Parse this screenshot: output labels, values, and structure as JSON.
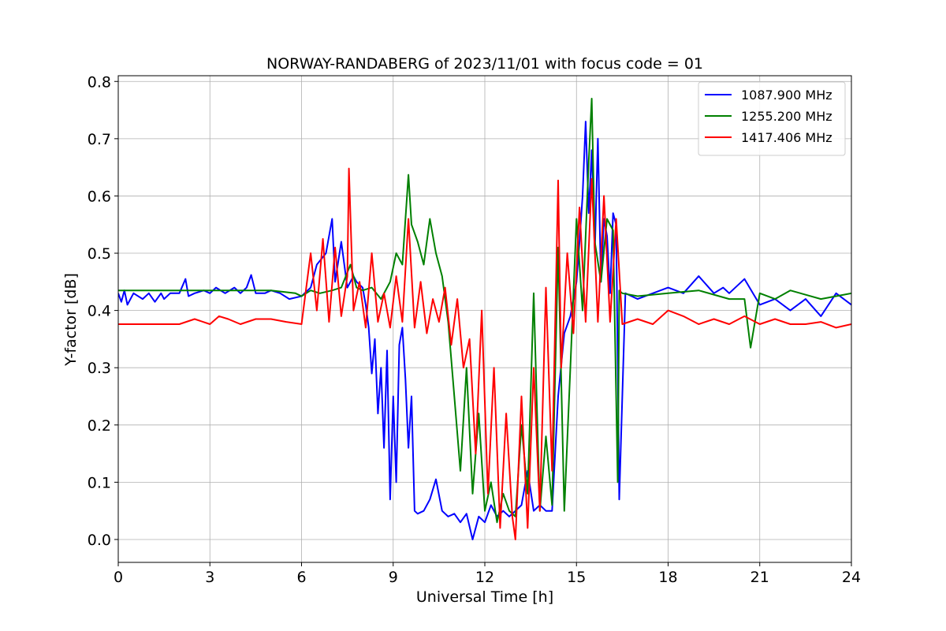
{
  "chart_data": {
    "type": "line",
    "title": "NORWAY-RANDABERG of 2023/11/01 with focus code = 01",
    "xlabel": "Universal Time [h]",
    "ylabel": "Y-factor [dB]",
    "xlim": [
      0,
      24
    ],
    "ylim": [
      -0.04,
      0.81
    ],
    "xticks": [
      0,
      3,
      6,
      9,
      12,
      15,
      18,
      21,
      24
    ],
    "xtick_labels": [
      "0",
      "3",
      "6",
      "9",
      "12",
      "15",
      "18",
      "21",
      "24"
    ],
    "yticks": [
      0.0,
      0.1,
      0.2,
      0.3,
      0.4,
      0.5,
      0.6,
      0.7,
      0.8
    ],
    "ytick_labels": [
      "0.0",
      "0.1",
      "0.2",
      "0.3",
      "0.4",
      "0.5",
      "0.6",
      "0.7",
      "0.8"
    ],
    "grid": true,
    "legend_position": "top-right",
    "series": [
      {
        "name": "1087.900 MHz",
        "color": "#0000ff",
        "x": [
          0,
          0.1,
          0.2,
          0.3,
          0.5,
          0.8,
          1.0,
          1.2,
          1.4,
          1.5,
          1.7,
          2.0,
          2.2,
          2.3,
          2.5,
          2.8,
          3.0,
          3.2,
          3.5,
          3.8,
          4.0,
          4.2,
          4.35,
          4.5,
          4.8,
          5.0,
          5.3,
          5.6,
          6.0,
          6.3,
          6.5,
          6.8,
          7.0,
          7.1,
          7.3,
          7.5,
          7.7,
          7.8,
          8.0,
          8.1,
          8.2,
          8.3,
          8.4,
          8.5,
          8.6,
          8.7,
          8.8,
          8.9,
          9.0,
          9.1,
          9.2,
          9.3,
          9.4,
          9.5,
          9.6,
          9.7,
          9.8,
          10.0,
          10.2,
          10.4,
          10.6,
          10.8,
          11.0,
          11.2,
          11.4,
          11.6,
          11.8,
          12.0,
          12.2,
          12.4,
          12.6,
          12.8,
          13.0,
          13.2,
          13.4,
          13.6,
          13.8,
          14.0,
          14.2,
          14.4,
          14.6,
          14.8,
          15.0,
          15.1,
          15.2,
          15.3,
          15.4,
          15.5,
          15.6,
          15.7,
          15.8,
          15.9,
          16.0,
          16.1,
          16.2,
          16.3,
          16.4,
          16.6,
          17.0,
          17.5,
          18.0,
          18.5,
          19.0,
          19.5,
          19.8,
          20.0,
          20.5,
          21.0,
          21.5,
          22.0,
          22.5,
          23.0,
          23.5,
          24.0
        ],
        "y": [
          0.43,
          0.415,
          0.435,
          0.41,
          0.43,
          0.42,
          0.43,
          0.415,
          0.43,
          0.42,
          0.43,
          0.43,
          0.455,
          0.425,
          0.43,
          0.435,
          0.43,
          0.44,
          0.43,
          0.44,
          0.43,
          0.44,
          0.462,
          0.43,
          0.43,
          0.435,
          0.43,
          0.42,
          0.425,
          0.44,
          0.48,
          0.5,
          0.56,
          0.45,
          0.52,
          0.44,
          0.46,
          0.45,
          0.44,
          0.41,
          0.37,
          0.29,
          0.35,
          0.22,
          0.3,
          0.16,
          0.33,
          0.07,
          0.25,
          0.1,
          0.34,
          0.37,
          0.28,
          0.16,
          0.25,
          0.05,
          0.045,
          0.05,
          0.07,
          0.105,
          0.05,
          0.04,
          0.045,
          0.03,
          0.045,
          0.0,
          0.04,
          0.03,
          0.06,
          0.04,
          0.05,
          0.04,
          0.05,
          0.06,
          0.12,
          0.05,
          0.06,
          0.05,
          0.05,
          0.25,
          0.36,
          0.39,
          0.45,
          0.52,
          0.6,
          0.73,
          0.57,
          0.68,
          0.5,
          0.7,
          0.45,
          0.56,
          0.53,
          0.43,
          0.57,
          0.55,
          0.07,
          0.43,
          0.42,
          0.43,
          0.44,
          0.43,
          0.46,
          0.43,
          0.44,
          0.43,
          0.455,
          0.41,
          0.42,
          0.4,
          0.42,
          0.39,
          0.43,
          0.41
        ]
      },
      {
        "name": "1255.200 MHz",
        "color": "#008000",
        "x": [
          0,
          1.0,
          2.0,
          3.0,
          4.0,
          5.0,
          5.8,
          6.0,
          6.3,
          6.6,
          7.0,
          7.3,
          7.6,
          7.8,
          8.0,
          8.3,
          8.6,
          8.9,
          9.1,
          9.3,
          9.5,
          9.6,
          9.8,
          10.0,
          10.2,
          10.4,
          10.6,
          10.8,
          11.0,
          11.2,
          11.4,
          11.6,
          11.8,
          12.0,
          12.2,
          12.4,
          12.6,
          12.8,
          13.0,
          13.2,
          13.4,
          13.6,
          13.8,
          14.0,
          14.2,
          14.4,
          14.6,
          14.8,
          15.0,
          15.2,
          15.4,
          15.5,
          15.6,
          15.8,
          16.0,
          16.2,
          16.35,
          16.4,
          16.5,
          17.0,
          18.0,
          19.0,
          20.0,
          20.5,
          20.7,
          21.0,
          21.5,
          22.0,
          23.0,
          24.0
        ],
        "y": [
          0.435,
          0.435,
          0.435,
          0.435,
          0.435,
          0.435,
          0.43,
          0.425,
          0.435,
          0.43,
          0.435,
          0.44,
          0.48,
          0.44,
          0.435,
          0.44,
          0.42,
          0.45,
          0.5,
          0.48,
          0.637,
          0.55,
          0.52,
          0.48,
          0.56,
          0.5,
          0.46,
          0.38,
          0.25,
          0.12,
          0.3,
          0.08,
          0.22,
          0.05,
          0.1,
          0.03,
          0.08,
          0.05,
          0.04,
          0.2,
          0.08,
          0.43,
          0.05,
          0.18,
          0.06,
          0.51,
          0.05,
          0.3,
          0.56,
          0.4,
          0.66,
          0.77,
          0.52,
          0.45,
          0.56,
          0.54,
          0.1,
          0.435,
          0.43,
          0.425,
          0.43,
          0.435,
          0.42,
          0.42,
          0.335,
          0.43,
          0.42,
          0.435,
          0.42,
          0.43
        ]
      },
      {
        "name": "1417.406 MHz",
        "color": "#ff0000",
        "x": [
          0,
          2.0,
          2.5,
          3.0,
          3.3,
          3.6,
          4.0,
          4.5,
          5.0,
          5.5,
          6.0,
          6.3,
          6.5,
          6.7,
          6.9,
          7.1,
          7.3,
          7.5,
          7.55,
          7.7,
          7.9,
          8.1,
          8.3,
          8.5,
          8.7,
          8.9,
          9.1,
          9.3,
          9.5,
          9.7,
          9.9,
          10.1,
          10.3,
          10.5,
          10.7,
          10.9,
          11.1,
          11.3,
          11.5,
          11.7,
          11.9,
          12.1,
          12.3,
          12.5,
          12.7,
          12.9,
          13.0,
          13.2,
          13.4,
          13.6,
          13.8,
          14.0,
          14.2,
          14.4,
          14.5,
          14.7,
          14.9,
          15.1,
          15.3,
          15.5,
          15.7,
          15.9,
          16.1,
          16.3,
          16.5,
          17.0,
          17.5,
          18.0,
          18.5,
          19.0,
          19.5,
          20.0,
          20.5,
          21.0,
          21.5,
          22.0,
          22.5,
          23.0,
          23.5,
          24.0
        ],
        "y": [
          0.376,
          0.376,
          0.385,
          0.376,
          0.39,
          0.385,
          0.376,
          0.385,
          0.385,
          0.38,
          0.376,
          0.5,
          0.4,
          0.525,
          0.38,
          0.51,
          0.39,
          0.46,
          0.648,
          0.4,
          0.45,
          0.37,
          0.5,
          0.38,
          0.43,
          0.37,
          0.46,
          0.38,
          0.56,
          0.37,
          0.45,
          0.36,
          0.42,
          0.38,
          0.44,
          0.34,
          0.42,
          0.3,
          0.35,
          0.15,
          0.4,
          0.08,
          0.3,
          0.02,
          0.22,
          0.04,
          0.0,
          0.25,
          0.02,
          0.3,
          0.05,
          0.44,
          0.12,
          0.627,
          0.3,
          0.5,
          0.36,
          0.58,
          0.38,
          0.63,
          0.38,
          0.6,
          0.38,
          0.56,
          0.376,
          0.385,
          0.376,
          0.4,
          0.39,
          0.376,
          0.385,
          0.376,
          0.39,
          0.376,
          0.385,
          0.376,
          0.376,
          0.38,
          0.37,
          0.376
        ]
      }
    ]
  }
}
